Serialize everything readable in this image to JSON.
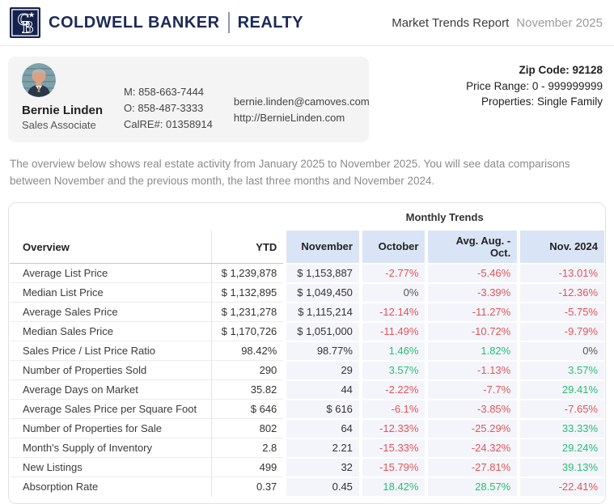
{
  "brand": {
    "monogram": "CB",
    "name": "COLDWELL BANKER",
    "division": "REALTY"
  },
  "header": {
    "report_title": "Market Trends Report",
    "report_period": "November 2025"
  },
  "agent": {
    "name": "Bernie Linden",
    "title": "Sales Associate",
    "mobile": "M: 858-663-7444",
    "office": "O: 858-487-3333",
    "license": "CalRE#: 01358914",
    "email": "bernie.linden@camoves.com",
    "website": "http://BernieLinden.com"
  },
  "filters": {
    "zip": "Zip Code: 92128",
    "price_range": "Price Range: 0 - 999999999",
    "properties": "Properties: Single Family"
  },
  "description": "The overview below shows real estate activity from January 2025 to November 2025. You will see data comparisons between November and the previous month, the last three months and November 2024.",
  "table": {
    "group_header": "Monthly Trends",
    "columns": [
      "Overview",
      "YTD",
      "November",
      "October",
      "Avg. Aug. - Oct.",
      "Nov. 2024"
    ],
    "rows": [
      {
        "label": "Average List Price",
        "ytd": "$ 1,239,878",
        "november": "$ 1,153,887",
        "trends": {
          "october": {
            "value": "-2.77%",
            "dir": "down"
          },
          "avg_aug_oct": {
            "value": "-5.46%",
            "dir": "down"
          },
          "nov_2024": {
            "value": "-13.01%",
            "dir": "down"
          }
        }
      },
      {
        "label": "Median List Price",
        "ytd": "$ 1,132,895",
        "november": "$ 1,049,450",
        "trends": {
          "october": {
            "value": "0%",
            "dir": "flat"
          },
          "avg_aug_oct": {
            "value": "-3.39%",
            "dir": "down"
          },
          "nov_2024": {
            "value": "-12.36%",
            "dir": "down"
          }
        }
      },
      {
        "label": "Average Sales Price",
        "ytd": "$ 1,231,278",
        "november": "$ 1,115,214",
        "trends": {
          "october": {
            "value": "-12.14%",
            "dir": "down"
          },
          "avg_aug_oct": {
            "value": "-11.27%",
            "dir": "down"
          },
          "nov_2024": {
            "value": "-5.75%",
            "dir": "down"
          }
        }
      },
      {
        "label": "Median Sales Price",
        "ytd": "$ 1,170,726",
        "november": "$ 1,051,000",
        "trends": {
          "october": {
            "value": "-11.49%",
            "dir": "down"
          },
          "avg_aug_oct": {
            "value": "-10.72%",
            "dir": "down"
          },
          "nov_2024": {
            "value": "-9.79%",
            "dir": "down"
          }
        }
      },
      {
        "label": "Sales Price / List Price Ratio",
        "ytd": "98.42%",
        "november": "98.77%",
        "trends": {
          "october": {
            "value": "1.46%",
            "dir": "up"
          },
          "avg_aug_oct": {
            "value": "1.82%",
            "dir": "up"
          },
          "nov_2024": {
            "value": "0%",
            "dir": "flat"
          }
        }
      },
      {
        "label": "Number of Properties Sold",
        "ytd": "290",
        "november": "29",
        "trends": {
          "october": {
            "value": "3.57%",
            "dir": "up"
          },
          "avg_aug_oct": {
            "value": "-1.13%",
            "dir": "down"
          },
          "nov_2024": {
            "value": "3.57%",
            "dir": "up"
          }
        }
      },
      {
        "label": "Average Days on Market",
        "ytd": "35.82",
        "november": "44",
        "trends": {
          "october": {
            "value": "-2.22%",
            "dir": "down"
          },
          "avg_aug_oct": {
            "value": "-7.7%",
            "dir": "down"
          },
          "nov_2024": {
            "value": "29.41%",
            "dir": "up"
          }
        }
      },
      {
        "label": "Average Sales Price per Square Foot",
        "ytd": "$ 646",
        "november": "$ 616",
        "trends": {
          "october": {
            "value": "-6.1%",
            "dir": "down"
          },
          "avg_aug_oct": {
            "value": "-3.85%",
            "dir": "down"
          },
          "nov_2024": {
            "value": "-7.65%",
            "dir": "down"
          }
        }
      },
      {
        "label": "Number of Properties for Sale",
        "ytd": "802",
        "november": "64",
        "trends": {
          "october": {
            "value": "-12.33%",
            "dir": "down"
          },
          "avg_aug_oct": {
            "value": "-25.29%",
            "dir": "down"
          },
          "nov_2024": {
            "value": "33.33%",
            "dir": "up"
          }
        }
      },
      {
        "label": "Month's Supply of Inventory",
        "ytd": "2.8",
        "november": "2.21",
        "trends": {
          "october": {
            "value": "-15.33%",
            "dir": "down"
          },
          "avg_aug_oct": {
            "value": "-24.32%",
            "dir": "down"
          },
          "nov_2024": {
            "value": "29.24%",
            "dir": "up"
          }
        }
      },
      {
        "label": "New Listings",
        "ytd": "499",
        "november": "32",
        "trends": {
          "october": {
            "value": "-15.79%",
            "dir": "down"
          },
          "avg_aug_oct": {
            "value": "-27.81%",
            "dir": "down"
          },
          "nov_2024": {
            "value": "39.13%",
            "dir": "up"
          }
        }
      },
      {
        "label": "Absorption Rate",
        "ytd": "0.37",
        "november": "0.45",
        "trends": {
          "october": {
            "value": "18.42%",
            "dir": "up"
          },
          "avg_aug_oct": {
            "value": "28.57%",
            "dir": "up"
          },
          "nov_2024": {
            "value": "-22.41%",
            "dir": "down"
          }
        }
      }
    ]
  },
  "colors": {
    "brand_navy": "#1b2a57",
    "logo_square": "#15214d",
    "trend_up": "#26bf6e",
    "trend_down": "#e05555",
    "header_cell_blue": "#d9e5f6",
    "trend_cell_lavender": "#f4f5fb"
  }
}
